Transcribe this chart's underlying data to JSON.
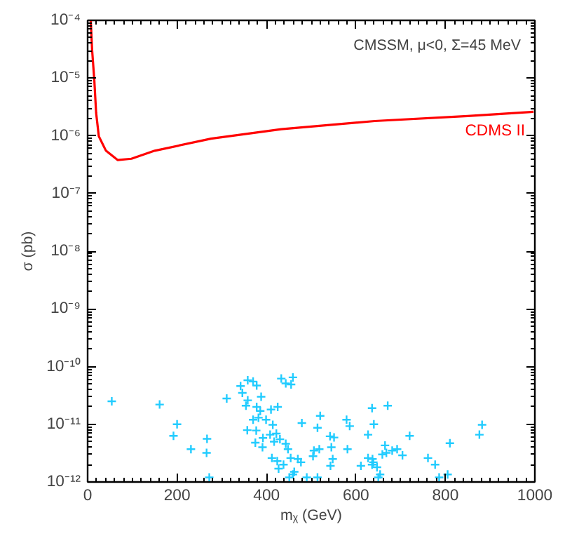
{
  "chart_data": {
    "type": "scatter",
    "xlabel": "mᵪ (GeV)",
    "ylabel": "σ (pb)",
    "log": "y",
    "grid": false,
    "legend": false,
    "xlim": [
      0,
      1000
    ],
    "xticks": [
      0,
      200,
      400,
      600,
      800,
      1000
    ],
    "ylim": [
      1e-12,
      0.0001
    ],
    "yticks": [
      {
        "value": 1e-12,
        "label": "10⁻¹²"
      },
      {
        "value": 1e-11,
        "label": "10⁻¹¹"
      },
      {
        "value": 1e-10,
        "label": "10⁻¹⁰"
      },
      {
        "value": 1e-09,
        "label": "10⁻⁹"
      },
      {
        "value": 1e-08,
        "label": "10⁻⁸"
      },
      {
        "value": 1e-07,
        "label": "10⁻⁷"
      },
      {
        "value": 1e-06,
        "label": "10⁻⁶"
      },
      {
        "value": 1e-05,
        "label": "10⁻⁵"
      },
      {
        "value": 0.0001,
        "label": "10⁻⁴"
      }
    ],
    "annotations": [
      "CMSSM, μ<0, Σ=45 MeV"
    ],
    "series": [
      {
        "type": "line",
        "name": "CDMS II",
        "color": "#ff0000",
        "x": [
          7,
          10,
          15,
          19,
          25,
          41,
          67,
          98,
          150,
          276,
          433,
          642,
          850,
          997
        ],
        "values": [
          0.0001,
          3.1e-05,
          9.1e-06,
          2.5e-06,
          9.8e-07,
          5.5e-07,
          3.8e-07,
          4e-07,
          5.5e-07,
          8.9e-07,
          1.3e-06,
          1.8e-06,
          2.2e-06,
          2.6e-06
        ]
      },
      {
        "color": "#22ccff",
        "marker": "cross",
        "x": [
          54,
          161,
          200,
          192,
          231,
          267,
          266,
          272,
          311,
          342,
          358,
          370,
          378,
          346,
          358,
          388,
          354,
          378,
          386,
          370,
          382,
          399,
          410,
          425,
          357,
          377,
          392,
          408,
          422,
          414,
          433,
          443,
          459,
          455,
          375,
          391,
          417,
          430,
          443,
          448,
          412,
          424,
          438,
          454,
          470,
          462,
          427,
          451,
          459,
          479,
          477,
          490,
          504,
          506,
          514,
          520,
          518,
          514,
          542,
          543,
          551,
          545,
          548,
          579,
          586,
          581,
          611,
          627,
          636,
          640,
          627,
          637,
          639,
          636,
          647,
          654,
          650,
          659,
          665,
          668,
          671,
          681,
          692,
          704,
          720,
          761,
          777,
          786,
          805,
          810,
          876,
          882
        ],
        "values": [
          2.5e-11,
          2.2e-11,
          1e-11,
          6.3e-12,
          3.7e-12,
          5.6e-12,
          3.2e-12,
          1.2e-12,
          2.8e-11,
          4.6e-11,
          5.8e-11,
          5.5e-11,
          4.7e-11,
          3.5e-11,
          2.6e-11,
          3e-11,
          2.1e-11,
          2e-11,
          1.7e-11,
          1.2e-11,
          1.3e-11,
          1.2e-11,
          1.8e-11,
          2e-11,
          7.9e-12,
          7.8e-12,
          5.8e-12,
          6.6e-12,
          6.9e-12,
          9.8e-12,
          6.2e-11,
          5.1e-11,
          6.5e-11,
          4.9e-11,
          4.8e-12,
          4e-12,
          5e-12,
          5.5e-12,
          4.6e-12,
          3.7e-12,
          2.6e-12,
          2.3e-12,
          2e-12,
          2.6e-12,
          2.5e-12,
          1.5e-12,
          1.7e-12,
          1.2e-12,
          1.35e-12,
          1.05e-11,
          2.2e-12,
          1.2e-12,
          2.8e-12,
          3.5e-12,
          8.7e-12,
          1.4e-11,
          3.7e-12,
          1.2e-12,
          6.2e-12,
          1.9e-12,
          5.9e-12,
          4e-12,
          2.5e-12,
          1.2e-11,
          9.3e-12,
          3.7e-12,
          1.9e-12,
          6.6e-12,
          1.9e-11,
          1e-11,
          2.6e-12,
          2.5e-12,
          2.2e-12,
          2e-12,
          1.8e-12,
          1.35e-12,
          1.2e-12,
          3e-12,
          4.3e-12,
          3.2e-12,
          2.1e-11,
          3.5e-12,
          3.7e-12,
          2.9e-12,
          6.3e-12,
          2.6e-12,
          2e-12,
          1.2e-12,
          1.35e-12,
          4.7e-12,
          6.6e-12,
          9.8e-12
        ]
      }
    ]
  }
}
